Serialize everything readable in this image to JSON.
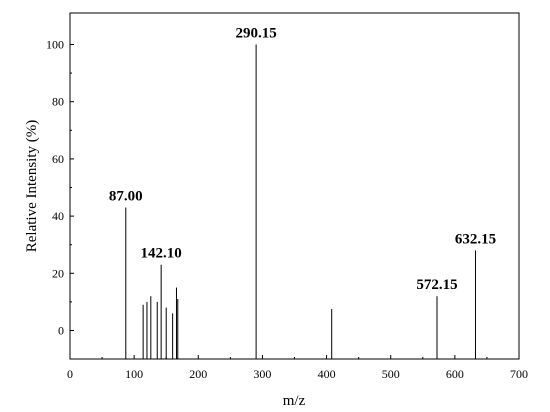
{
  "chart_data": {
    "type": "bar",
    "title": "",
    "xlabel": "m/z",
    "ylabel": "Relative Intensity (%)",
    "xlim": [
      0,
      700
    ],
    "ylim": [
      -10,
      110
    ],
    "x_ticks": [
      0,
      100,
      200,
      300,
      400,
      500,
      600,
      700
    ],
    "y_ticks": [
      0,
      20,
      40,
      60,
      80,
      100
    ],
    "grid": false,
    "series": [
      {
        "x": [
          87.0,
          114,
          120,
          126,
          136,
          142.1,
          150,
          160,
          166,
          168,
          290.15,
          408,
          572.15,
          632.15
        ],
        "values": [
          43,
          9,
          10,
          12,
          10,
          23,
          8,
          6,
          15,
          11,
          100,
          7.5,
          12,
          28
        ]
      }
    ],
    "annotations": [
      {
        "text": "87.00",
        "x": 87.0,
        "y": 43
      },
      {
        "text": "142.10",
        "x": 142.1,
        "y": 23
      },
      {
        "text": "290.15",
        "x": 290.15,
        "y": 100
      },
      {
        "text": "572.15",
        "x": 572.15,
        "y": 12
      },
      {
        "text": "632.15",
        "x": 632.15,
        "y": 28
      }
    ]
  }
}
